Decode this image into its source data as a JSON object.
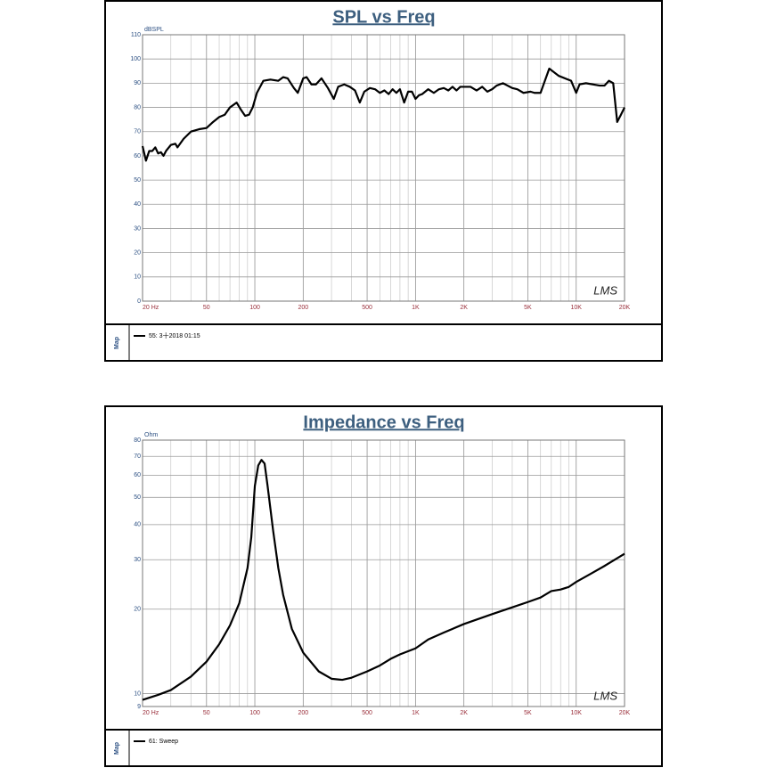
{
  "chart_data": [
    {
      "type": "line",
      "title": "SPL vs Freq",
      "ylabel": "dBSPL",
      "legend_title": "Map",
      "watermark": "LMS",
      "xscale": "log",
      "yscale": "linear",
      "grid": true,
      "minor_grid": true,
      "xlim": [
        20,
        20000
      ],
      "ylim": [
        0,
        110
      ],
      "xticks": [
        {
          "value": 20,
          "label": "20 Hz"
        },
        50,
        100,
        200,
        500,
        {
          "value": 1000,
          "label": "1K"
        },
        {
          "value": 2000,
          "label": "2K"
        },
        {
          "value": 5000,
          "label": "5K"
        },
        {
          "value": 10000,
          "label": "10K"
        },
        {
          "value": 20000,
          "label": "20K"
        }
      ],
      "yticks": [
        0,
        10,
        20,
        30,
        40,
        50,
        60,
        70,
        80,
        90,
        100,
        110
      ],
      "x": [
        20,
        21,
        22,
        23,
        24,
        25,
        26,
        27,
        28,
        30,
        32,
        33,
        36,
        40,
        45,
        50,
        55,
        60,
        65,
        70,
        77,
        82,
        87,
        92,
        97,
        103,
        113,
        125,
        140,
        150,
        160,
        175,
        185,
        200,
        210,
        225,
        240,
        260,
        285,
        310,
        330,
        360,
        390,
        420,
        450,
        480,
        520,
        560,
        600,
        640,
        680,
        720,
        760,
        800,
        850,
        900,
        950,
        1000,
        1050,
        1100,
        1200,
        1300,
        1400,
        1500,
        1600,
        1700,
        1800,
        1900,
        2000,
        2200,
        2400,
        2600,
        2800,
        3000,
        3200,
        3500,
        4000,
        4300,
        4700,
        5200,
        5500,
        6000,
        6800,
        7800,
        9300,
        10000,
        10500,
        11500,
        14000,
        15000,
        16000,
        17000,
        18000,
        19000,
        20000
      ],
      "series": [
        {
          "name": "55: 3十2018 01:15",
          "color": "#000000",
          "values": [
            64,
            58,
            62,
            62,
            63.5,
            61,
            61.5,
            60,
            62,
            64.5,
            65,
            63.5,
            67,
            70,
            71,
            71.5,
            74,
            76,
            77,
            80,
            82,
            79,
            76.5,
            77,
            80,
            86,
            91,
            91.5,
            91,
            92.5,
            92,
            88,
            86,
            92,
            92.5,
            89.5,
            89.5,
            92,
            88,
            83.5,
            88.5,
            89.5,
            88.5,
            87,
            82,
            86.5,
            88,
            87.5,
            86,
            87,
            85.5,
            87.5,
            86,
            87.5,
            82,
            86.5,
            86.5,
            83.5,
            85,
            85.5,
            87.5,
            86,
            87.5,
            88,
            87,
            88.5,
            87,
            88.5,
            88.5,
            88.5,
            87,
            88.5,
            86.5,
            87.5,
            89,
            90,
            88,
            87.5,
            86,
            86.5,
            86,
            86,
            96,
            93,
            91,
            86,
            89.5,
            90,
            89,
            89,
            91,
            90,
            74,
            77,
            80
          ]
        }
      ]
    },
    {
      "type": "line",
      "title": "Impedance vs Freq",
      "ylabel": "Ohm",
      "legend_title": "Map",
      "watermark": "LMS",
      "xscale": "log",
      "yscale": "log",
      "grid": true,
      "minor_grid": true,
      "xlim": [
        20,
        20000
      ],
      "ylim": [
        9,
        80
      ],
      "xticks": [
        {
          "value": 20,
          "label": "20 Hz"
        },
        50,
        100,
        200,
        500,
        {
          "value": 1000,
          "label": "1K"
        },
        {
          "value": 2000,
          "label": "2K"
        },
        {
          "value": 5000,
          "label": "5K"
        },
        {
          "value": 10000,
          "label": "10K"
        },
        {
          "value": 20000,
          "label": "20K"
        }
      ],
      "yticks": [
        9,
        10,
        20,
        30,
        40,
        50,
        60,
        70,
        80
      ],
      "x": [
        20,
        25,
        30,
        40,
        50,
        60,
        70,
        80,
        90,
        95,
        100,
        105,
        110,
        115,
        120,
        130,
        140,
        150,
        170,
        200,
        250,
        300,
        350,
        400,
        500,
        600,
        700,
        800,
        1000,
        1200,
        1500,
        2000,
        3000,
        4000,
        5000,
        6000,
        7000,
        8000,
        9000,
        10000,
        12000,
        15000,
        20000
      ],
      "series": [
        {
          "name": "61: Sweep",
          "color": "#000000",
          "values": [
            9.5,
            9.9,
            10.3,
            11.5,
            13,
            15,
            17.5,
            21,
            28,
            36,
            55,
            65,
            68,
            66,
            55,
            38,
            28,
            22.5,
            17,
            14,
            12,
            11.3,
            11.2,
            11.4,
            12,
            12.6,
            13.3,
            13.8,
            14.5,
            15.6,
            16.5,
            17.7,
            19.2,
            20.3,
            21.2,
            22,
            23.2,
            23.5,
            24,
            25,
            26.5,
            28.5,
            31.5
          ]
        }
      ]
    }
  ]
}
